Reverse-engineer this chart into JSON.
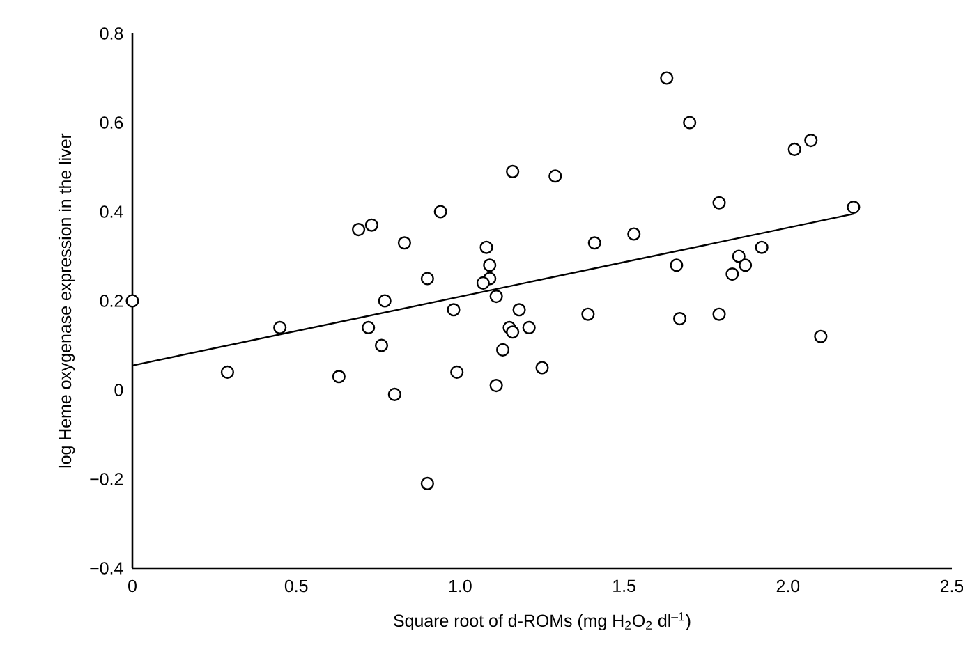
{
  "chart_data": {
    "type": "scatter",
    "xlabel": "Square root of d-ROMs (mg H$_{2}$O$_{2}$ dl$^{–1}$)",
    "ylabel": "log Heme oxygenase expression in the liver",
    "xlim": [
      0,
      2.5
    ],
    "ylim": [
      -0.4,
      0.8
    ],
    "xticks": [
      0,
      0.5,
      {
        "value": 1,
        "label": "1.0"
      },
      1.5,
      {
        "value": 2,
        "label": "2.0"
      },
      2.5
    ],
    "yticks": [
      {
        "value": -0.4,
        "label": "−0.4"
      },
      {
        "value": -0.2,
        "label": "−0.2"
      },
      0,
      0.2,
      0.4,
      0.6,
      0.8
    ],
    "series": [
      {
        "marker": "circle",
        "color": "#000000",
        "x": [
          0,
          0.29,
          0.45,
          0.63,
          0.69,
          0.73,
          0.72,
          0.76,
          0.77,
          0.8,
          0.83,
          0.9,
          0.9,
          0.94,
          0.98,
          0.99,
          1.08,
          1.09,
          1.09,
          1.07,
          1.11,
          1.11,
          1.16,
          1.18,
          1.15,
          1.16,
          1.21,
          1.13,
          1.25,
          1.29,
          1.41,
          1.53,
          1.39,
          1.63,
          1.7,
          1.79,
          2.02,
          2.07,
          2.2,
          1.66,
          1.67,
          1.79,
          1.85,
          1.87,
          1.83,
          1.92,
          2.1
        ],
        "values": [
          0.2,
          0.04,
          0.14,
          0.03,
          0.36,
          0.37,
          0.14,
          0.1,
          0.2,
          -0.01,
          0.33,
          0.25,
          -0.21,
          0.4,
          0.18,
          0.04,
          0.32,
          0.28,
          0.25,
          0.24,
          0.21,
          0.01,
          0.49,
          0.18,
          0.14,
          0.13,
          0.14,
          0.09,
          0.05,
          0.48,
          0.33,
          0.35,
          0.17,
          0.7,
          0.6,
          0.42,
          0.54,
          0.56,
          0.41,
          0.28,
          0.16,
          0.17,
          0.3,
          0.28,
          0.26,
          0.32,
          0.12
        ]
      },
      {
        "type": "line",
        "marker": "none",
        "color": "#000000",
        "x": [
          0,
          2.2
        ],
        "values": [
          0.055,
          0.395
        ]
      }
    ]
  }
}
